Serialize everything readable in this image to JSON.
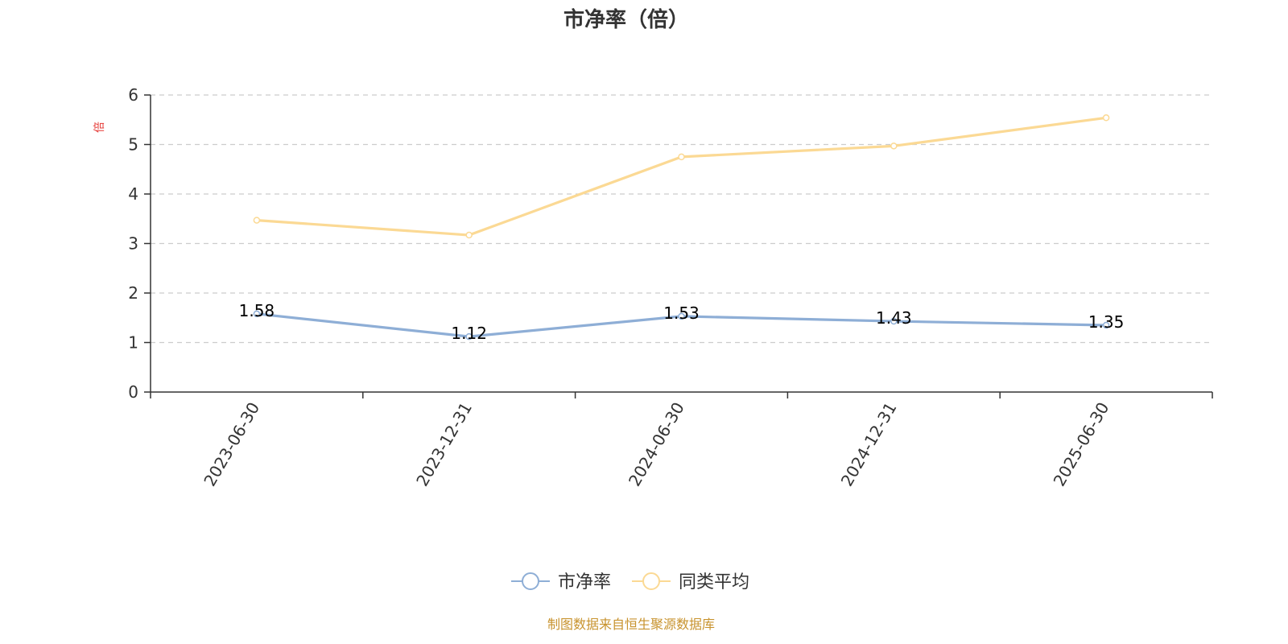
{
  "chart_data": {
    "type": "line",
    "title": "市净率（倍）",
    "ylabel": "倍",
    "xlabel": "",
    "categories": [
      "2023-06-30",
      "2023-12-31",
      "2024-06-30",
      "2024-12-31",
      "2025-06-30"
    ],
    "ylim": [
      0,
      6
    ],
    "yticks": [
      "0",
      "1",
      "2",
      "3",
      "4",
      "5",
      "6"
    ],
    "grid": true,
    "legend_position": "bottom-center",
    "series": [
      {
        "name": "市净率",
        "values": [
          1.58,
          1.12,
          1.53,
          1.43,
          1.35
        ],
        "labels": [
          "1.58",
          "1.12",
          "1.53",
          "1.43",
          "1.35"
        ],
        "color": "#8eaed6"
      },
      {
        "name": "同类平均",
        "values": [
          3.47,
          3.17,
          4.75,
          4.97,
          5.54
        ],
        "color": "#fbd994"
      }
    ],
    "unit_color": "#e53935"
  },
  "footer": {
    "source": "制图数据来自恒生聚源数据库",
    "color": "#c8932e"
  }
}
